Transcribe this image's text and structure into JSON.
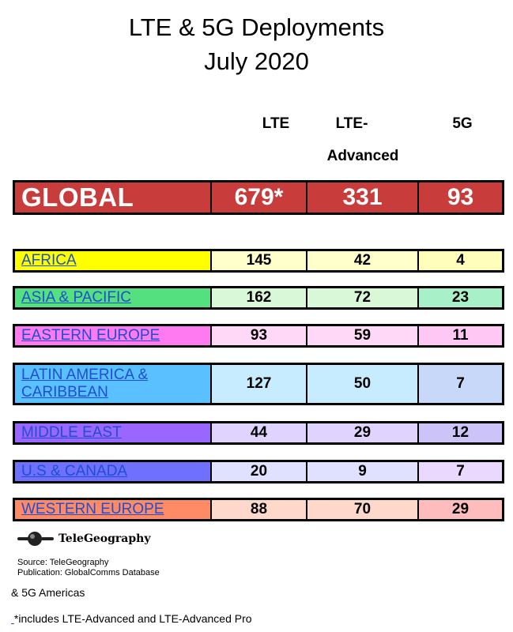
{
  "title_line1": "LTE & 5G Deployments",
  "title_line2": "July 2020",
  "columns": {
    "lte": "LTE",
    "adv_line1": "LTE-",
    "adv_line2": "Advanced",
    "fiveg": "5G"
  },
  "global": {
    "label": "GLOBAL",
    "lte": "679*",
    "adv": "331",
    "fiveg": "93",
    "color": "#c83c3c"
  },
  "regions": [
    {
      "name": "AFRICA",
      "lte": "145",
      "adv": "42",
      "fiveg": "4",
      "name_color": "#ffff00",
      "lte_color": "#ffffcc",
      "adv_color": "#ffffcc",
      "fiveg_color": "#ffffbb"
    },
    {
      "name": "ASIA & PACIFIC",
      "lte": "162",
      "adv": "72",
      "fiveg": "23",
      "name_color": "#55e080",
      "lte_color": "#d8f8d8",
      "adv_color": "#d8f8d8",
      "fiveg_color": "#a8f0c8"
    },
    {
      "name": "EASTERN EUROPE",
      "lte": "93",
      "adv": "59",
      "fiveg": "11",
      "name_color": "#ff7af0",
      "lte_color": "#ffd8f8",
      "adv_color": "#ffd8f8",
      "fiveg_color": "#ffc8f4"
    },
    {
      "name_line1": "LATIN AMERICA &",
      "name_line2": "CARIBBEAN",
      "lte": "127",
      "adv": "50",
      "fiveg": "7",
      "name_color": "#5ac0ff",
      "lte_color": "#c8ecff",
      "adv_color": "#c8ecff",
      "fiveg_color": "#c8d8f8"
    },
    {
      "name": "MIDDLE EAST",
      "lte": "44",
      "adv": "29",
      "fiveg": "12",
      "name_color": "#9966ff",
      "lte_color": "#e0d4ff",
      "adv_color": "#e0d4ff",
      "fiveg_color": "#ccc4f8"
    },
    {
      "name": "U.S & CANADA",
      "lte": "20",
      "adv": "9",
      "fiveg": "7",
      "name_color": "#7070ff",
      "lte_color": "#e0e0ff",
      "adv_color": "#e0e0ff",
      "fiveg_color": "#ead8ff"
    },
    {
      "name": "WESTERN EUROPE",
      "lte": "88",
      "adv": "70",
      "fiveg": "29",
      "name_color": "#ff8a66",
      "lte_color": "#ffd8cc",
      "adv_color": "#ffd8cc",
      "fiveg_color": "#ffbcbc"
    }
  ],
  "logo_text": "TeleGeography",
  "source_line1": "Source: TeleGeography",
  "source_line2": "Publication: GlobalComms Database",
  "note1": "& 5G Americas",
  "note2": "*includes LTE-Advanced and LTE-Advanced Pro"
}
